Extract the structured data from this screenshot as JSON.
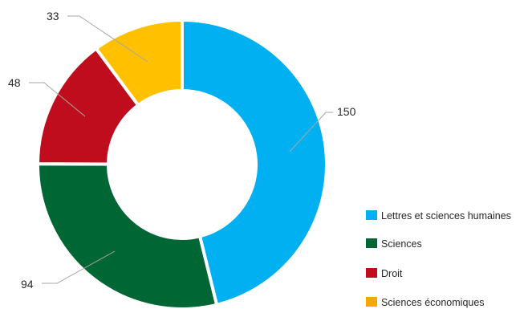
{
  "chart_data": {
    "type": "pie",
    "variant": "donut",
    "categories": [
      "Lettres et sciences humaines",
      "Sciences",
      "Droit",
      "Sciences économiques"
    ],
    "values": [
      150,
      94,
      48,
      33
    ],
    "colors": [
      "#00b0f0",
      "#006633",
      "#c00d1e",
      "#ffc000"
    ],
    "legend_colors": [
      "#00b0f0",
      "#006633",
      "#c00d1e",
      "#f2a900"
    ],
    "legend": {
      "position": "bottom-right"
    },
    "title": ""
  }
}
